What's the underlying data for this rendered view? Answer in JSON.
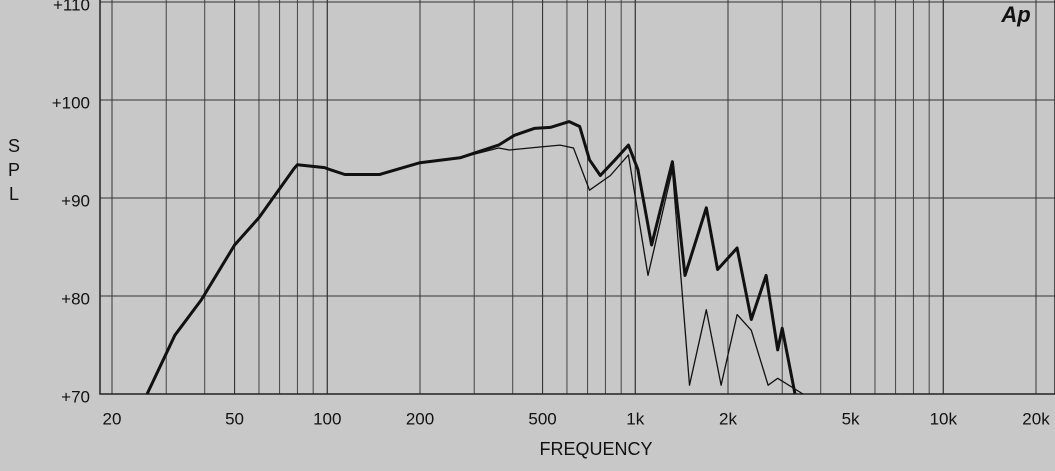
{
  "chart_data": {
    "type": "line",
    "logo": "Ap",
    "x_label": "FREQUENCY",
    "y_label": "SPL",
    "x_log": true,
    "grid": true,
    "xlim": [
      20,
      20000
    ],
    "ylim": [
      70,
      110
    ],
    "xticks": [
      20,
      50,
      100,
      200,
      500,
      {
        "value": 1000,
        "label": "1k"
      },
      {
        "value": 2000,
        "label": "2k"
      },
      {
        "value": 5000,
        "label": "5k"
      },
      {
        "value": 10000,
        "label": "10k"
      },
      {
        "value": 20000,
        "label": "20k"
      }
    ],
    "yticks": [
      {
        "value": 70,
        "label": "+70"
      },
      {
        "value": 80,
        "label": "+80"
      },
      {
        "value": 90,
        "label": "+90"
      },
      {
        "value": 100,
        "label": "+100"
      },
      {
        "value": 110,
        "label": "+110"
      }
    ],
    "series": [
      {
        "color": "#111111",
        "width": 3,
        "x": [
          26,
          32,
          39,
          50,
          60,
          78,
          80,
          98,
          102,
          114,
          148,
          200,
          270,
          360,
          405,
          470,
          530,
          610,
          660,
          710,
          770,
          860,
          950,
          1020,
          1130,
          1320,
          1450,
          1700,
          1850,
          2140,
          2380,
          2660,
          2900,
          3000,
          3300
        ],
        "values": [
          70,
          76,
          79.6,
          85.2,
          88,
          93,
          93.4,
          93.1,
          92.9,
          92.4,
          92.4,
          93.6,
          94.1,
          95.4,
          96.4,
          97.1,
          97.2,
          97.8,
          97.3,
          93.9,
          92.3,
          93.9,
          95.4,
          92.9,
          85.2,
          93.7,
          82.1,
          89,
          82.7,
          84.9,
          77.6,
          82.1,
          74.5,
          76.7,
          70
        ]
      },
      {
        "color": "#111111",
        "width": 1.3,
        "x": [
          26,
          32,
          39,
          50,
          60,
          78,
          80,
          98,
          102,
          114,
          148,
          200,
          270,
          360,
          390,
          490,
          570,
          630,
          710,
          830,
          950,
          1100,
          1320,
          1500,
          1700,
          1900,
          2140,
          2380,
          2700,
          2900,
          3500
        ],
        "values": [
          70,
          76,
          79.6,
          85.2,
          88,
          93,
          93.4,
          93.1,
          92.9,
          92.4,
          92.4,
          93.6,
          94.1,
          95.1,
          94.9,
          95.2,
          95.4,
          95.1,
          90.8,
          92.3,
          94.4,
          82.1,
          92.9,
          70.9,
          78.6,
          70.9,
          78.1,
          76.5,
          70.9,
          71.6,
          70
        ]
      }
    ]
  }
}
